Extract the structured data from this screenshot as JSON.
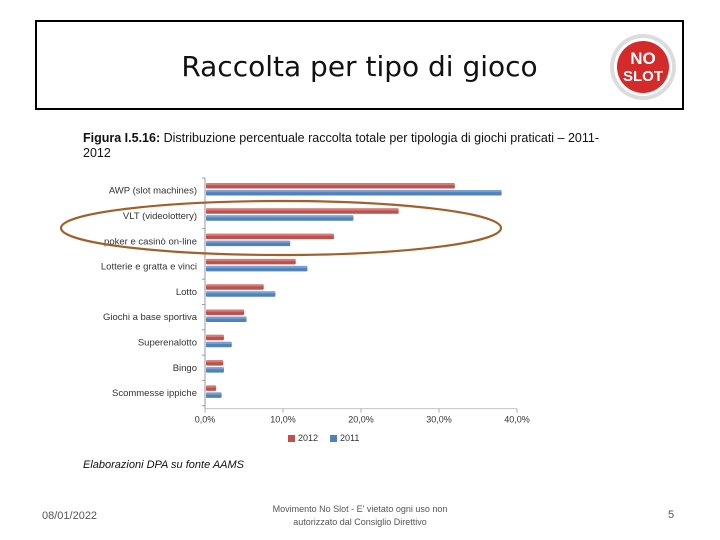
{
  "slide": {
    "title": "Raccolta per tipo di gioco",
    "logo_text_top": "NO",
    "logo_text_bottom": "SLOT",
    "caption_bold": "Figura I.5.16:",
    "caption_text": " Distribuzione percentuale raccolta totale per tipologia di giochi praticati – 2011-2012",
    "source_note": "Elaborazioni DPA su fonte AAMS",
    "footer_date": "08/01/2022",
    "footer_center": "Movimento No Slot - E' vietato ogni uso non autorizzato dal Consiglio Direttivo",
    "footer_page": "5"
  },
  "colors": {
    "series_2012": "#c0504d",
    "series_2011": "#4f81bd",
    "highlight_ellipse": "#a0602a",
    "logo_red": "#d42a2a"
  },
  "chart_data": {
    "type": "bar",
    "orientation": "horizontal",
    "categories": [
      "AWP (slot machines)",
      "VLT (videolottery)",
      "poker e casinò on-line",
      "Lotterie e gratta e vinci",
      "Lotto",
      "Giochi a base sportiva",
      "Superenalotto",
      "Bingo",
      "Scommesse ippiche"
    ],
    "series": [
      {
        "name": "2012",
        "values": [
          31.9,
          24.7,
          16.4,
          11.5,
          7.4,
          4.9,
          2.3,
          2.2,
          1.3
        ]
      },
      {
        "name": "2011",
        "values": [
          37.9,
          18.9,
          10.8,
          13.0,
          8.9,
          5.2,
          3.3,
          2.3,
          2.0
        ]
      }
    ],
    "xlim": [
      0,
      40
    ],
    "xticks": [
      "0,0%",
      "10,0%",
      "20,0%",
      "30,0%",
      "40,0%"
    ],
    "legend": [
      "2012",
      "2011"
    ],
    "legend_position": "bottom",
    "grid": false
  }
}
